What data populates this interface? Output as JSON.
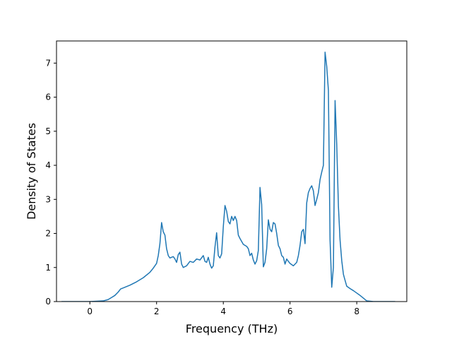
{
  "chart_data": {
    "type": "line",
    "title": "",
    "xlabel": "Frequency (THz)",
    "ylabel": "Density of States",
    "xlim": [
      -1.0,
      9.5
    ],
    "ylim": [
      0,
      7.65
    ],
    "xticks": [
      0,
      2,
      4,
      6,
      8
    ],
    "yticks": [
      0,
      1,
      2,
      3,
      4,
      5,
      6,
      7
    ],
    "grid": false,
    "legend": "none",
    "series": [
      {
        "color": "#1f77b4",
        "x": [
          -0.85,
          0.0,
          0.4,
          0.55,
          0.65,
          0.75,
          0.85,
          0.92,
          1.0,
          1.2,
          1.4,
          1.6,
          1.8,
          1.9,
          2.0,
          2.05,
          2.1,
          2.15,
          2.2,
          2.25,
          2.3,
          2.35,
          2.4,
          2.5,
          2.55,
          2.6,
          2.65,
          2.7,
          2.75,
          2.8,
          2.9,
          3.0,
          3.1,
          3.2,
          3.3,
          3.4,
          3.45,
          3.5,
          3.55,
          3.6,
          3.65,
          3.7,
          3.75,
          3.8,
          3.85,
          3.9,
          3.95,
          4.0,
          4.05,
          4.1,
          4.15,
          4.2,
          4.25,
          4.3,
          4.35,
          4.4,
          4.45,
          4.5,
          4.6,
          4.7,
          4.75,
          4.8,
          4.85,
          4.9,
          4.95,
          5.0,
          5.05,
          5.1,
          5.15,
          5.2,
          5.25,
          5.3,
          5.35,
          5.4,
          5.45,
          5.5,
          5.55,
          5.6,
          5.65,
          5.7,
          5.75,
          5.8,
          5.85,
          5.9,
          5.95,
          6.0,
          6.1,
          6.2,
          6.25,
          6.3,
          6.35,
          6.4,
          6.45,
          6.5,
          6.55,
          6.6,
          6.65,
          6.7,
          6.75,
          6.8,
          6.85,
          6.9,
          6.95,
          7.0,
          7.05,
          7.1,
          7.15,
          7.2,
          7.25,
          7.3,
          7.35,
          7.4,
          7.45,
          7.5,
          7.55,
          7.6,
          7.65,
          7.7,
          7.8,
          7.9,
          8.0,
          8.1,
          8.2,
          8.3,
          8.5,
          9.15
        ],
        "y": [
          0,
          0,
          0.02,
          0.06,
          0.12,
          0.18,
          0.28,
          0.37,
          0.4,
          0.48,
          0.58,
          0.7,
          0.86,
          0.98,
          1.12,
          1.35,
          1.7,
          2.32,
          2.05,
          1.95,
          1.55,
          1.35,
          1.28,
          1.32,
          1.25,
          1.15,
          1.38,
          1.45,
          1.1,
          1.0,
          1.05,
          1.18,
          1.15,
          1.25,
          1.22,
          1.35,
          1.18,
          1.15,
          1.3,
          1.1,
          0.98,
          1.05,
          1.6,
          2.02,
          1.35,
          1.28,
          1.4,
          2.2,
          2.82,
          2.65,
          2.35,
          2.28,
          2.5,
          2.38,
          2.5,
          2.38,
          1.95,
          1.85,
          1.68,
          1.62,
          1.55,
          1.35,
          1.42,
          1.22,
          1.1,
          1.2,
          1.5,
          3.35,
          2.85,
          1.02,
          1.15,
          1.55,
          2.4,
          2.12,
          2.05,
          2.32,
          2.28,
          2.0,
          1.65,
          1.55,
          1.35,
          1.3,
          1.1,
          1.25,
          1.18,
          1.12,
          1.05,
          1.15,
          1.35,
          1.65,
          2.05,
          2.12,
          1.7,
          2.9,
          3.2,
          3.32,
          3.4,
          3.25,
          2.82,
          3.0,
          3.2,
          3.58,
          3.8,
          4.0,
          7.32,
          6.9,
          6.2,
          1.8,
          0.42,
          1.0,
          5.9,
          4.6,
          2.8,
          1.8,
          1.2,
          0.8,
          0.62,
          0.45,
          0.38,
          0.32,
          0.25,
          0.18,
          0.1,
          0.02,
          0,
          0
        ]
      }
    ]
  }
}
